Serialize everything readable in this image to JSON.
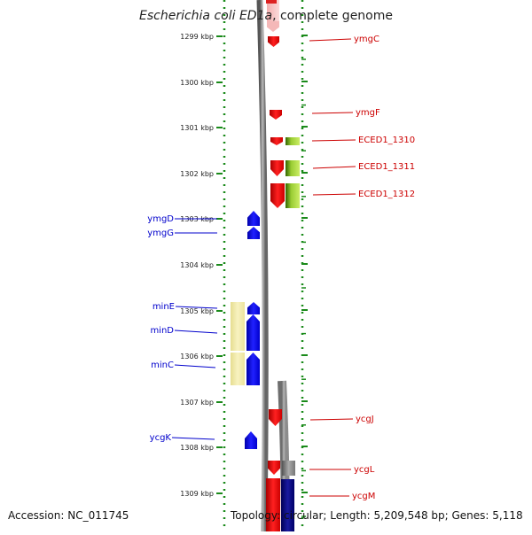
{
  "title": {
    "organism": "Escherichia coli ED1a",
    "rest": ", complete genome"
  },
  "footer": {
    "accession": "Accession: NC_011745",
    "topology": "Topology: circular; Length: 5,209,548 bp; Genes: 5,118"
  },
  "axis": {
    "unit": "kbp",
    "ticks": [
      "1299 kbp",
      "1300 kbp",
      "1301 kbp",
      "1302 kbp",
      "1303 kbp",
      "1304 kbp",
      "1305 kbp",
      "1306 kbp",
      "1307 kbp",
      "1308 kbp",
      "1309 kbp"
    ]
  },
  "genes_right": [
    {
      "name": "ymgC"
    },
    {
      "name": "ymgF"
    },
    {
      "name": "ECED1_1310"
    },
    {
      "name": "ECED1_1311"
    },
    {
      "name": "ECED1_1312"
    },
    {
      "name": "ycgJ"
    },
    {
      "name": "ycgL"
    },
    {
      "name": "ycgM"
    }
  ],
  "genes_left": [
    {
      "name": "ymgD"
    },
    {
      "name": "ymgG"
    },
    {
      "name": "minE"
    },
    {
      "name": "minD"
    },
    {
      "name": "minC"
    },
    {
      "name": "ycgK"
    }
  ],
  "colors": {
    "right_label": "#cc0000",
    "left_label": "#0000cc",
    "tick": "#1a8a1a",
    "forward_gene": "#ff0000",
    "reverse_gene": "#0000ff",
    "green_feature": "#66aa22",
    "yellow_feature": "#f2eaa6",
    "grey_feature": "#888888",
    "navy_feature": "#000088",
    "backbone": "#888888"
  }
}
